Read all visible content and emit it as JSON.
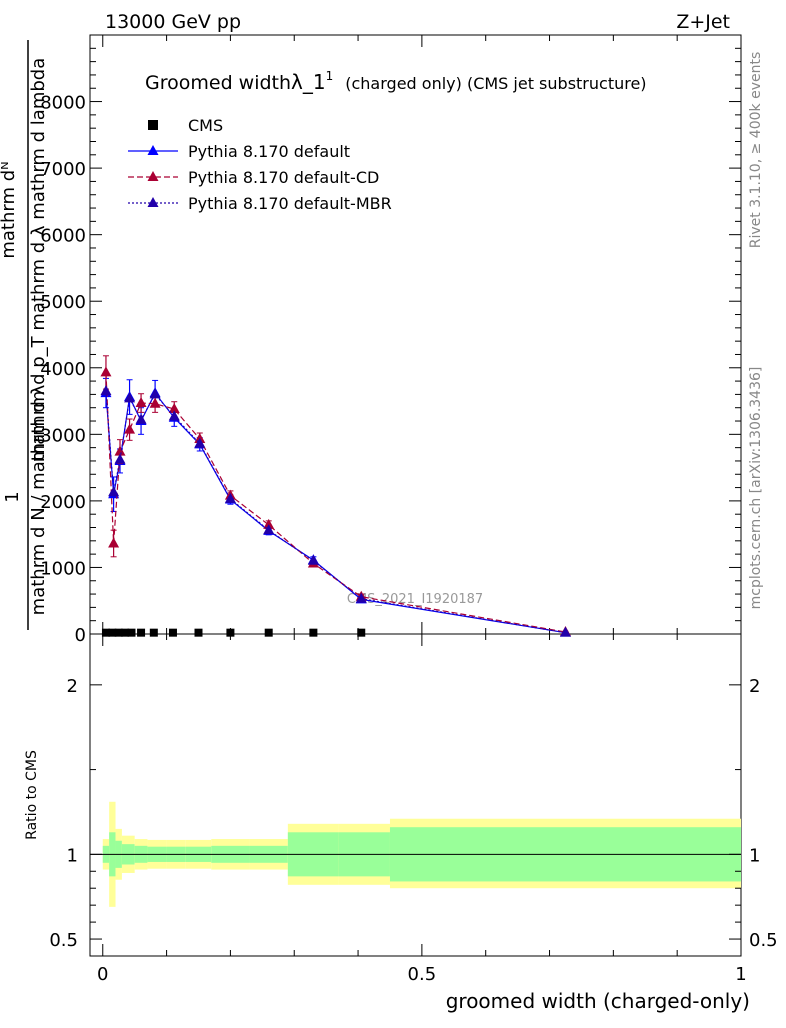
{
  "chart_data": {
    "type": "line",
    "header_left": "13000 GeV pp",
    "header_right": "Z+Jet",
    "title": "Groomed width",
    "title_symbol": "λ_1",
    "title_sup": "1",
    "title_suffix": "(charged only) (CMS jet substructure)",
    "ylabel_top": "1",
    "ylabel_num": "mathrm dᴺ",
    "ylabel_den": "mathrm d p_T mathrm d λ mathrm d lambda",
    "ylabel_bottom": "mathrm d N / mathrm d λ",
    "xlabel": "groomed width (charged-only)",
    "ratio_ylabel": "Ratio to CMS",
    "right_label_top": "Rivet 3.1.10, ≥ 400k events",
    "right_label_bottom": "mcplots.cern.ch [arXiv:1306.3436]",
    "watermark": "CMS_2021_I1920187",
    "xlim": [
      -0.02,
      1.0
    ],
    "ylim": [
      0,
      9000
    ],
    "ratio_ylim": [
      0.4,
      2.3
    ],
    "x_ticks": [
      {
        "v": 0,
        "label": "0"
      },
      {
        "v": 0.5,
        "label": "0.5"
      },
      {
        "v": 1,
        "label": "1"
      }
    ],
    "y_ticks": [
      {
        "v": 0,
        "label": "0"
      },
      {
        "v": 1000,
        "label": "1000"
      },
      {
        "v": 2000,
        "label": "2000"
      },
      {
        "v": 3000,
        "label": "3000"
      },
      {
        "v": 4000,
        "label": "4000"
      },
      {
        "v": 5000,
        "label": "5000"
      },
      {
        "v": 6000,
        "label": "6000"
      },
      {
        "v": 7000,
        "label": "7000"
      },
      {
        "v": 8000,
        "label": "8000"
      }
    ],
    "ratio_ticks": [
      {
        "v": 0.5,
        "label": "0.5"
      },
      {
        "v": 1,
        "label": "1"
      },
      {
        "v": 2,
        "label": "2"
      }
    ],
    "legend": [
      {
        "name": "CMS",
        "color": "#000000",
        "style": "square"
      },
      {
        "name": "Pythia 8.170 default",
        "color": "#0000ff",
        "style": "solid"
      },
      {
        "name": "Pythia 8.170 default-CD",
        "color": "#aa0033",
        "style": "dashed"
      },
      {
        "name": "Pythia 8.170 default-MBR",
        "color": "#2200aa",
        "style": "dotted"
      }
    ],
    "cms": {
      "x": [
        0.005,
        0.015,
        0.025,
        0.035,
        0.045,
        0.06,
        0.08,
        0.11,
        0.15,
        0.2,
        0.26,
        0.33,
        0.405
      ],
      "y": [
        20,
        20,
        20,
        20,
        20,
        20,
        20,
        20,
        20,
        20,
        20,
        20,
        20
      ]
    },
    "series": [
      {
        "name": "Pythia 8.170 default",
        "color": "#0000ff",
        "dash": "",
        "x": [
          0.005,
          0.017,
          0.027,
          0.042,
          0.06,
          0.082,
          0.112,
          0.152,
          0.2,
          0.26,
          0.33,
          0.405,
          0.725
        ],
        "y": [
          3620,
          2100,
          2600,
          3560,
          3200,
          3620,
          3250,
          2850,
          2020,
          1550,
          1110,
          520,
          20
        ],
        "err": [
          220,
          260,
          180,
          260,
          200,
          190,
          130,
          100,
          70,
          60,
          50,
          40,
          10
        ]
      },
      {
        "name": "Pythia 8.170 default-CD",
        "color": "#aa0033",
        "dash": "6,3",
        "x": [
          0.005,
          0.017,
          0.027,
          0.042,
          0.06,
          0.082,
          0.112,
          0.152,
          0.2,
          0.26,
          0.33,
          0.405,
          0.725
        ],
        "y": [
          3930,
          1360,
          2740,
          3070,
          3470,
          3460,
          3380,
          2930,
          2080,
          1640,
          1060,
          560,
          30
        ],
        "err": [
          250,
          200,
          180,
          160,
          140,
          130,
          110,
          90,
          70,
          60,
          50,
          40,
          10
        ]
      },
      {
        "name": "Pythia 8.170 default-MBR",
        "color": "#2200aa",
        "dash": "2,2",
        "x": [
          0.005,
          0.017,
          0.027,
          0.042,
          0.06,
          0.082,
          0.112,
          0.152,
          0.2,
          0.26,
          0.33,
          0.405,
          0.725
        ],
        "y": [
          3650,
          2130,
          2620,
          3540,
          3220,
          3600,
          3270,
          2860,
          2030,
          1560,
          1100,
          530,
          20
        ],
        "err": [
          0,
          0,
          0,
          0,
          0,
          0,
          0,
          0,
          0,
          0,
          0,
          0,
          0
        ]
      }
    ],
    "ratio_bands": {
      "edges": [
        0.0,
        0.01,
        0.02,
        0.03,
        0.05,
        0.07,
        0.1,
        0.13,
        0.17,
        0.23,
        0.29,
        0.37,
        0.45,
        1.0
      ],
      "inner_low": [
        0.95,
        0.87,
        0.92,
        0.94,
        0.95,
        0.955,
        0.955,
        0.955,
        0.95,
        0.95,
        0.87,
        0.87,
        0.84
      ],
      "inner_high": [
        1.05,
        1.13,
        1.08,
        1.06,
        1.05,
        1.045,
        1.045,
        1.045,
        1.05,
        1.05,
        1.13,
        1.13,
        1.16
      ],
      "outer_low": [
        0.91,
        0.69,
        0.85,
        0.89,
        0.91,
        0.915,
        0.915,
        0.915,
        0.91,
        0.91,
        0.82,
        0.82,
        0.8
      ],
      "outer_high": [
        1.09,
        1.31,
        1.15,
        1.11,
        1.09,
        1.085,
        1.085,
        1.085,
        1.09,
        1.09,
        1.18,
        1.18,
        1.21
      ]
    }
  }
}
